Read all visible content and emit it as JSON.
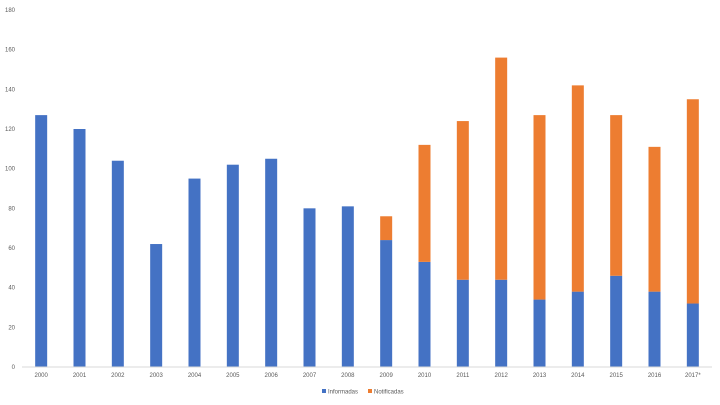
{
  "chart_data": {
    "type": "bar",
    "stacked": true,
    "title": "",
    "xlabel": "",
    "ylabel": "",
    "ylim": [
      0,
      180
    ],
    "yticks": [
      0,
      20,
      40,
      60,
      80,
      100,
      120,
      140,
      160,
      180
    ],
    "grid": false,
    "legend_position": "bottom",
    "categories": [
      "2000",
      "2001",
      "2002",
      "2003",
      "2004",
      "2005",
      "2006",
      "2007",
      "2008",
      "2009",
      "2010",
      "2011",
      "2012",
      "2013",
      "2014",
      "2015",
      "2016",
      "2017*"
    ],
    "series": [
      {
        "name": "Informadas",
        "color": "#4472C4",
        "values": [
          127,
          120,
          104,
          62,
          95,
          102,
          105,
          80,
          81,
          64,
          53,
          44,
          44,
          34,
          38,
          46,
          38,
          32
        ]
      },
      {
        "name": "Notificadas",
        "color": "#ED7D31",
        "values": [
          0,
          0,
          0,
          0,
          0,
          0,
          0,
          0,
          0,
          12,
          59,
          80,
          112,
          93,
          104,
          81,
          73,
          103
        ]
      }
    ]
  }
}
